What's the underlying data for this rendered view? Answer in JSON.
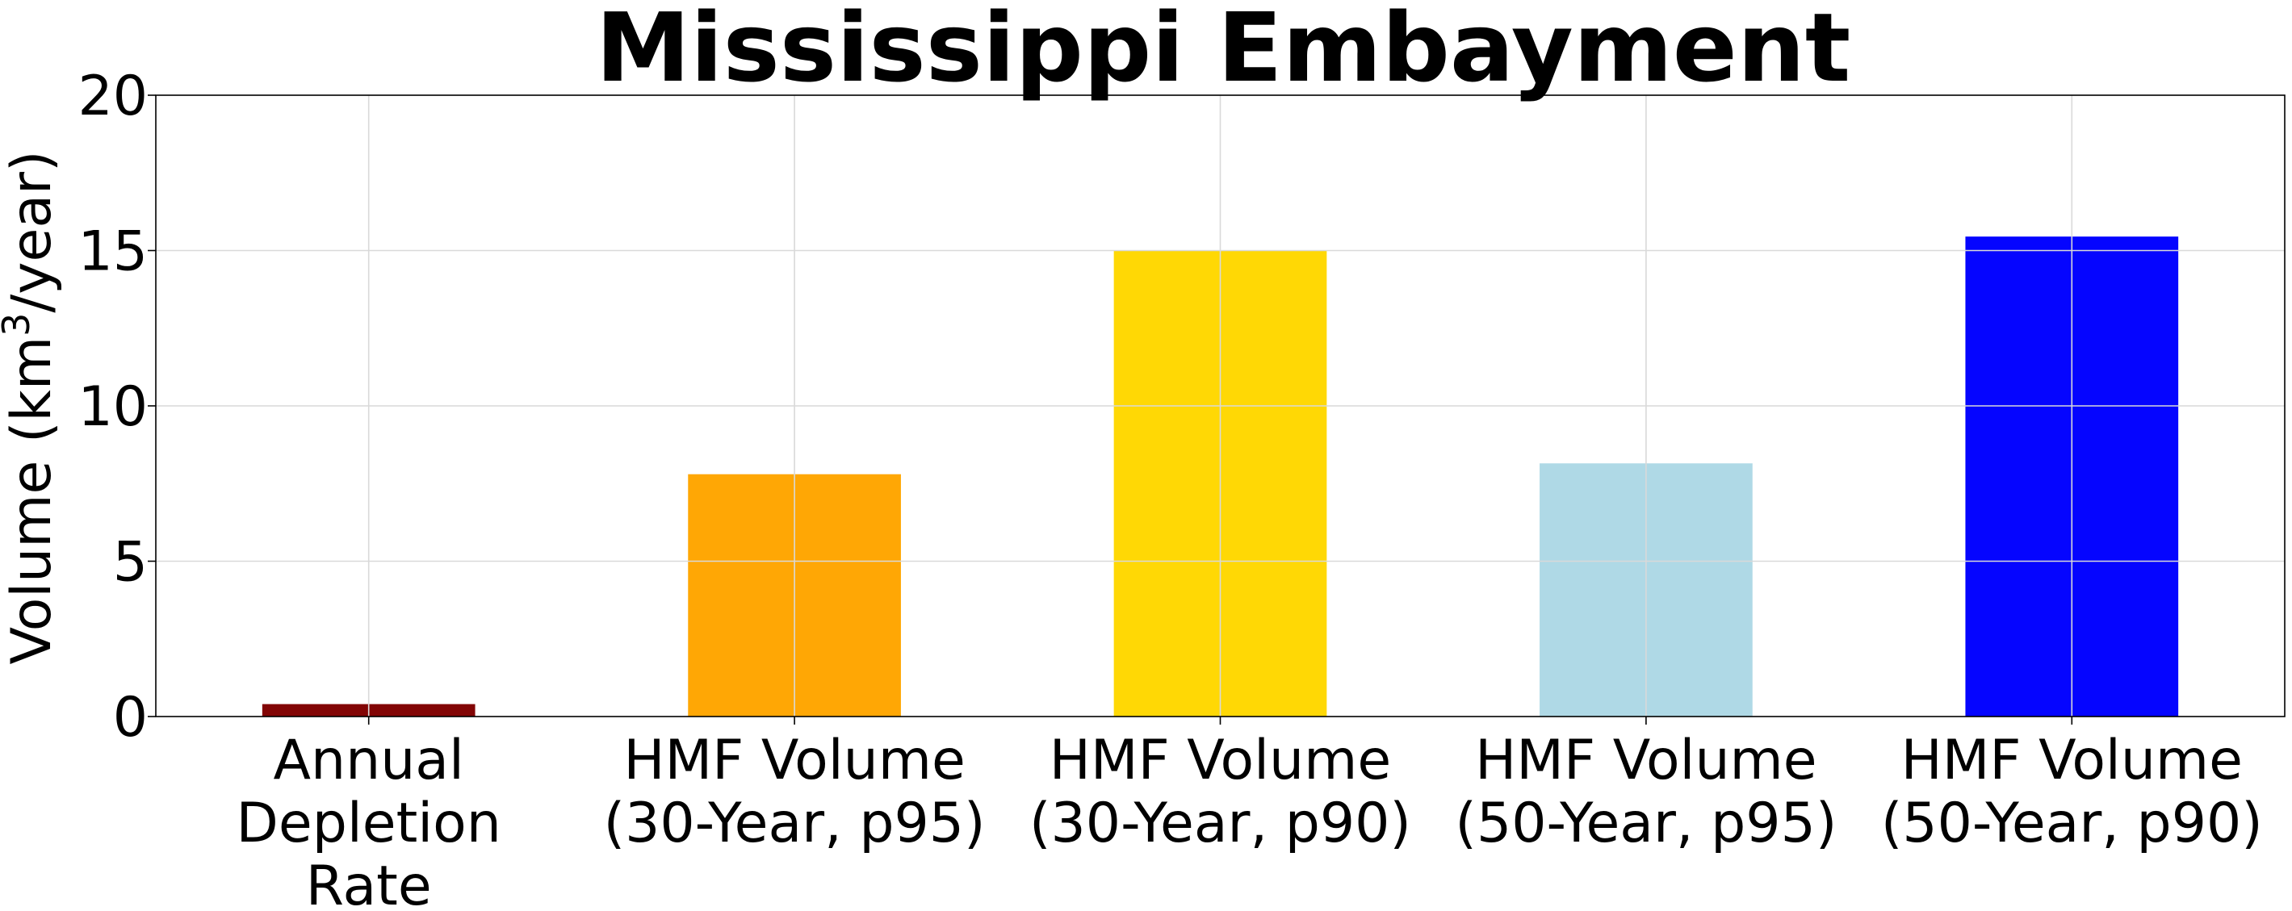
{
  "chart_data": {
    "type": "bar",
    "title": "Mississippi Embayment",
    "xlabel": "",
    "ylabel_prefix": "Volume (km",
    "ylabel_superscript": "3",
    "ylabel_suffix": "/year)",
    "ylim": [
      0,
      20
    ],
    "yticks": [
      "0",
      "5",
      "10",
      "15",
      "20"
    ],
    "grid": true,
    "categories": [
      [
        "Annual",
        "Depletion",
        "Rate"
      ],
      [
        "HMF Volume",
        "(30-Year, p95)"
      ],
      [
        "HMF Volume",
        "(30-Year, p90)"
      ],
      [
        "HMF Volume",
        "(50-Year, p95)"
      ],
      [
        "HMF Volume",
        "(50-Year, p90)"
      ]
    ],
    "values": [
      0.4,
      7.8,
      15.0,
      8.15,
      15.45
    ],
    "colors": [
      "#800000",
      "#ffa500",
      "#ffd700",
      "#add8e6",
      "#0000ff"
    ]
  }
}
